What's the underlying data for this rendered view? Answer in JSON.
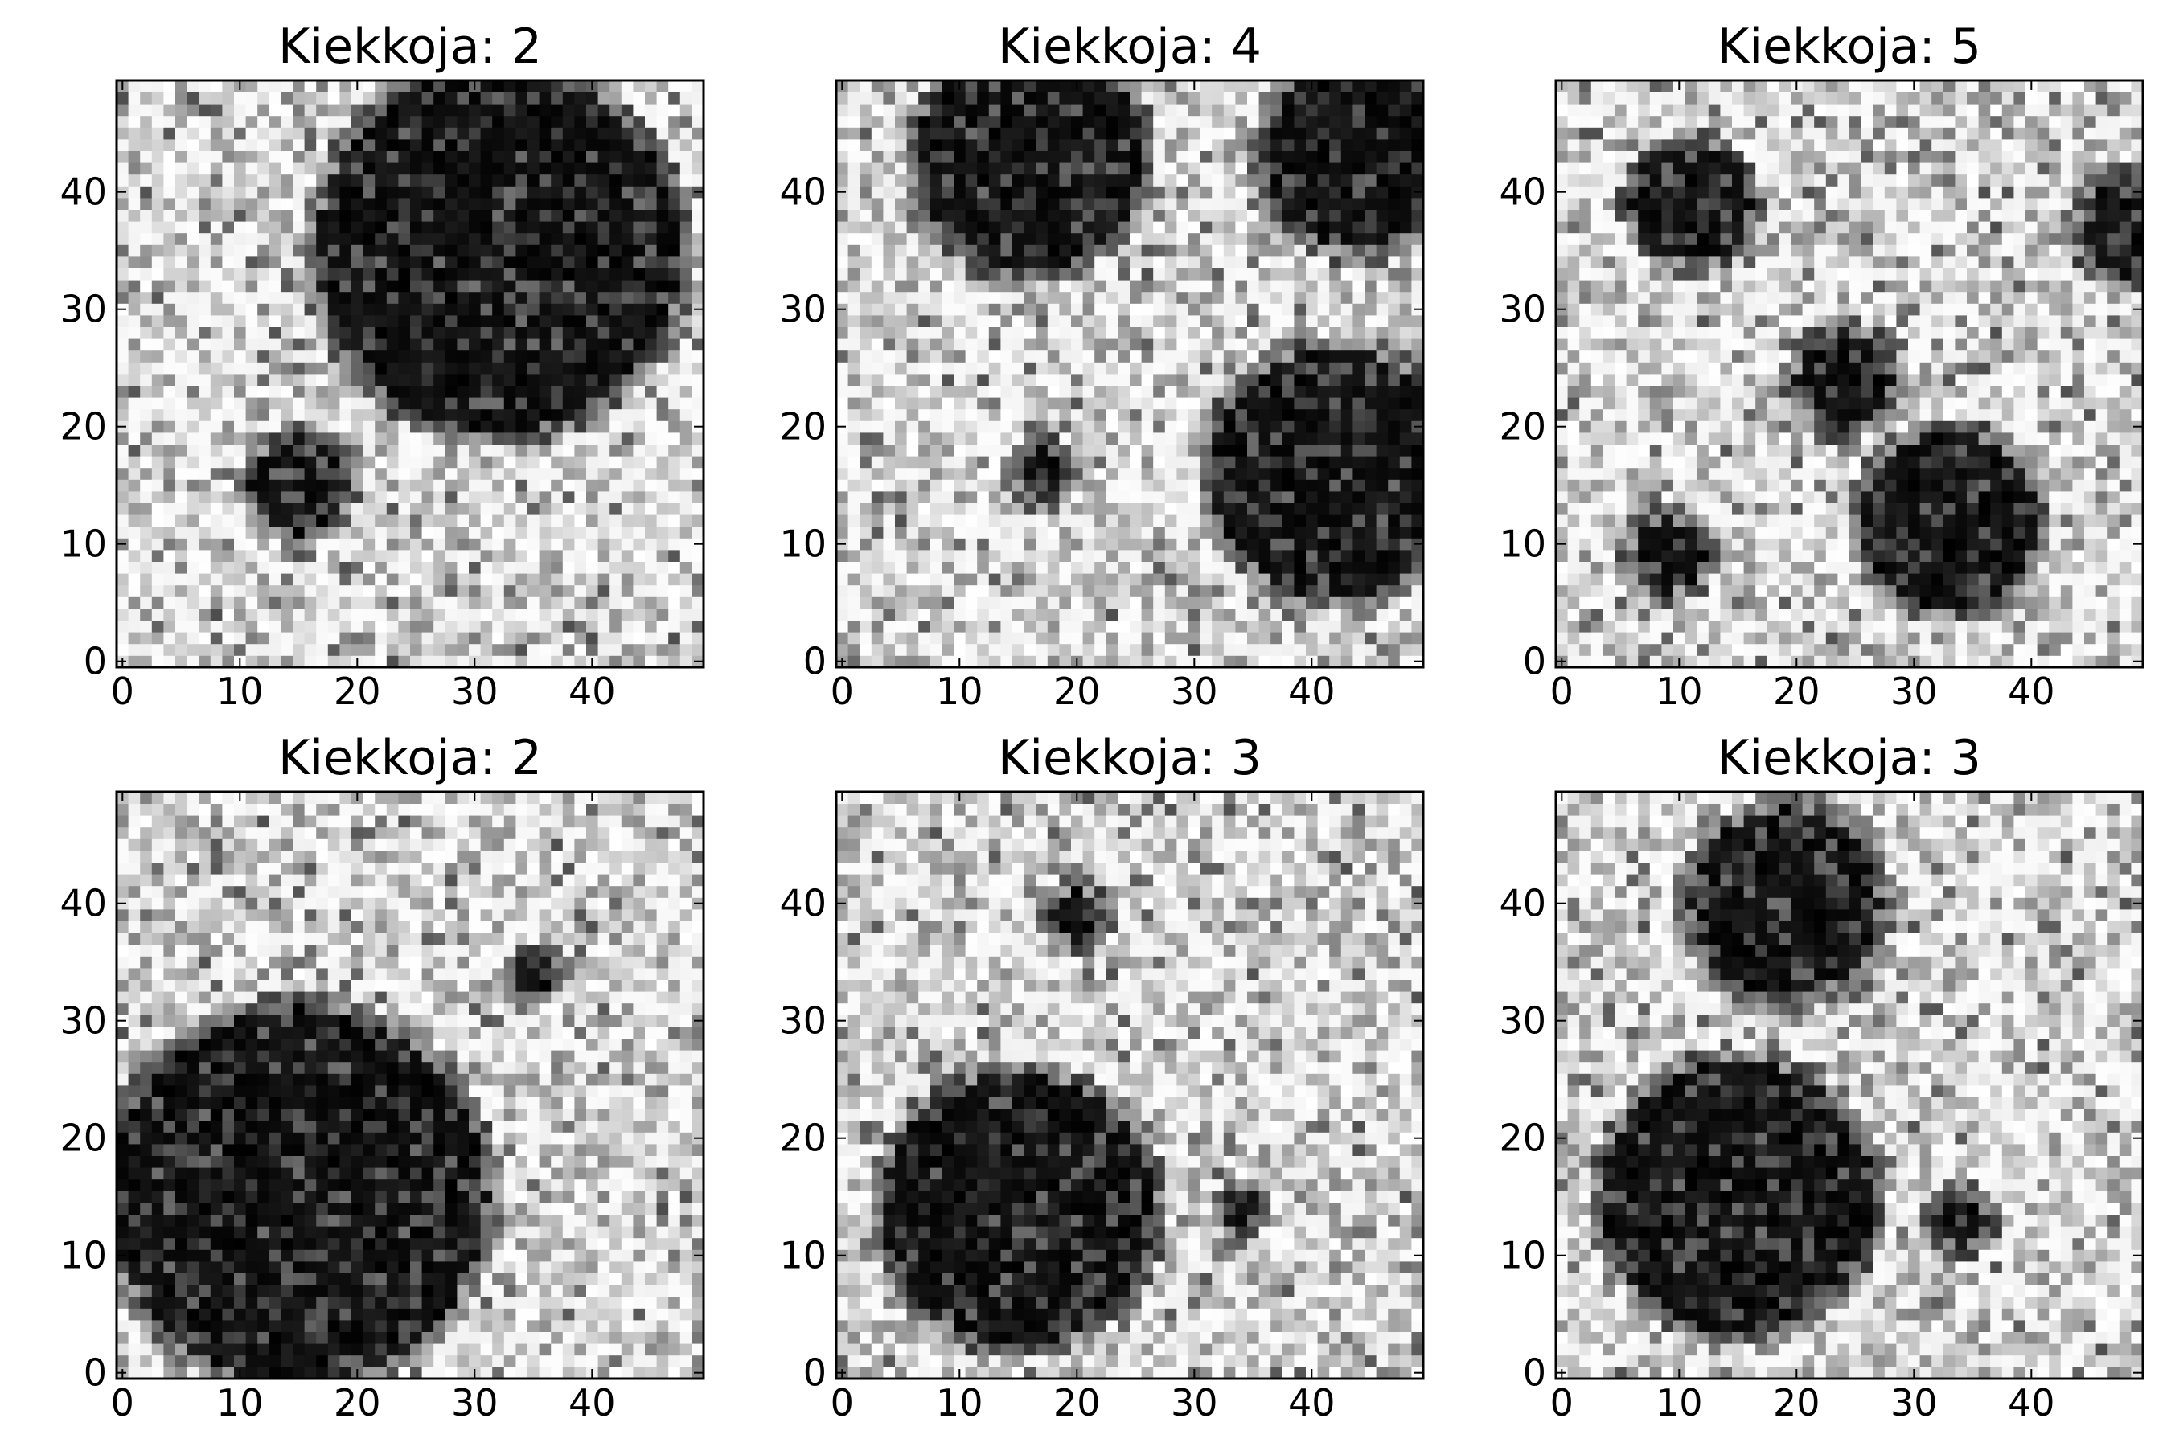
{
  "figure": {
    "colormap": "gray_r",
    "background": "#ffffff"
  },
  "chart_data": [
    {
      "type": "heatmap",
      "title": "Kiekkoja: 2",
      "grid_size": [
        50,
        50
      ],
      "xlim": [
        0,
        49
      ],
      "ylim": [
        0,
        49
      ],
      "xticks": [
        0,
        10,
        20,
        30,
        40
      ],
      "yticks": [
        0,
        10,
        20,
        30,
        40
      ],
      "grid": false,
      "discs": [
        {
          "cx": 32,
          "cy": 35,
          "r": 15.5
        },
        {
          "cx": 15,
          "cy": 15,
          "r": 4
        }
      ]
    },
    {
      "type": "heatmap",
      "title": "Kiekkoja: 4",
      "grid_size": [
        50,
        50
      ],
      "xlim": [
        0,
        49
      ],
      "ylim": [
        0,
        49
      ],
      "xticks": [
        0,
        10,
        20,
        30,
        40
      ],
      "yticks": [
        0,
        10,
        20,
        30,
        40
      ],
      "grid": false,
      "discs": [
        {
          "cx": 16,
          "cy": 43,
          "r": 9.5
        },
        {
          "cx": 44,
          "cy": 43,
          "r": 8
        },
        {
          "cx": 42,
          "cy": 16,
          "r": 10.5
        },
        {
          "cx": 17,
          "cy": 16,
          "r": 2
        }
      ]
    },
    {
      "type": "heatmap",
      "title": "Kiekkoja: 5",
      "grid_size": [
        50,
        50
      ],
      "xlim": [
        0,
        49
      ],
      "ylim": [
        0,
        49
      ],
      "xticks": [
        0,
        10,
        20,
        30,
        40
      ],
      "yticks": [
        0,
        10,
        20,
        30,
        40
      ],
      "grid": false,
      "discs": [
        {
          "cx": 11,
          "cy": 39,
          "r": 5
        },
        {
          "cx": 48,
          "cy": 37,
          "r": 4
        },
        {
          "cx": 24,
          "cy": 24,
          "r": 4
        },
        {
          "cx": 33,
          "cy": 12,
          "r": 7.5
        },
        {
          "cx": 9,
          "cy": 9,
          "r": 3
        }
      ]
    },
    {
      "type": "heatmap",
      "title": "Kiekkoja: 2",
      "grid_size": [
        50,
        50
      ],
      "xlim": [
        0,
        49
      ],
      "ylim": [
        0,
        49
      ],
      "xticks": [
        0,
        10,
        20,
        30,
        40
      ],
      "yticks": [
        0,
        10,
        20,
        30,
        40
      ],
      "grid": false,
      "discs": [
        {
          "cx": 15,
          "cy": 15,
          "r": 16
        },
        {
          "cx": 35,
          "cy": 34,
          "r": 1.5
        }
      ]
    },
    {
      "type": "heatmap",
      "title": "Kiekkoja: 3",
      "grid_size": [
        50,
        50
      ],
      "xlim": [
        0,
        49
      ],
      "ylim": [
        0,
        49
      ],
      "xticks": [
        0,
        10,
        20,
        30,
        40
      ],
      "yticks": [
        0,
        10,
        20,
        30,
        40
      ],
      "grid": false,
      "discs": [
        {
          "cx": 15,
          "cy": 14,
          "r": 11.5
        },
        {
          "cx": 20,
          "cy": 39,
          "r": 2
        },
        {
          "cx": 34,
          "cy": 14,
          "r": 1.5
        }
      ]
    },
    {
      "type": "heatmap",
      "title": "Kiekkoja: 3",
      "grid_size": [
        50,
        50
      ],
      "xlim": [
        0,
        49
      ],
      "ylim": [
        0,
        49
      ],
      "xticks": [
        0,
        10,
        20,
        30,
        40
      ],
      "yticks": [
        0,
        10,
        20,
        30,
        40
      ],
      "grid": false,
      "discs": [
        {
          "cx": 19,
          "cy": 40,
          "r": 8
        },
        {
          "cx": 15,
          "cy": 15,
          "r": 11.5
        },
        {
          "cx": 34,
          "cy": 13,
          "r": 2
        }
      ]
    }
  ]
}
